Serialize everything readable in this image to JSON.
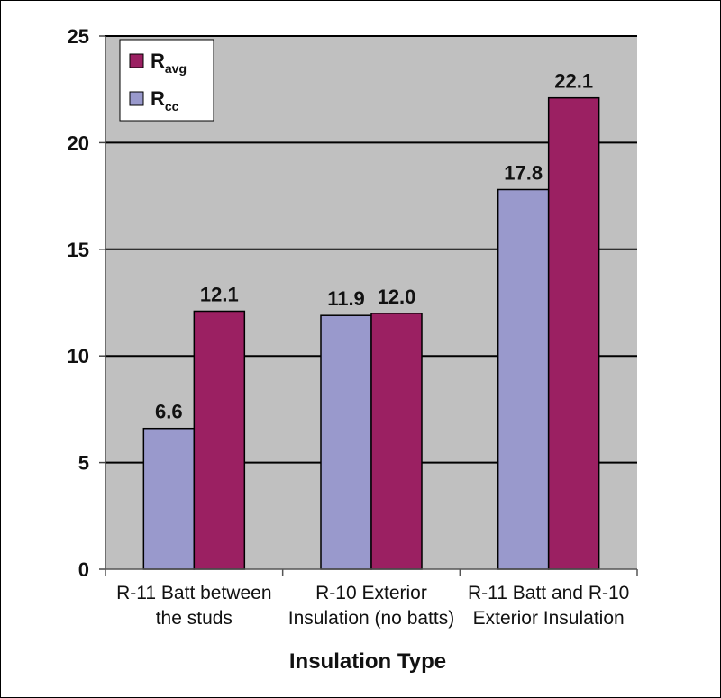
{
  "chart_data": {
    "type": "bar",
    "title": "",
    "xlabel": "Insulation Type",
    "ylabel": "",
    "ylim": [
      0,
      25
    ],
    "yticks": [
      0,
      5,
      10,
      15,
      20,
      25
    ],
    "grid": true,
    "legend_position": "top-left",
    "categories": [
      [
        "R-11 Batt between",
        "the studs"
      ],
      [
        "R-10 Exterior",
        "Insulation (no batts)"
      ],
      [
        "R-11 Batt and R-10",
        "Exterior Insulation"
      ]
    ],
    "series": [
      {
        "name": "R",
        "sub": "cc",
        "color": "#9999cc",
        "values": [
          6.6,
          11.9,
          17.8
        ],
        "labels": [
          "6.6",
          "11.9",
          "17.8"
        ]
      },
      {
        "name": "R",
        "sub": "avg",
        "color": "#9b2062",
        "values": [
          12.1,
          12.0,
          22.1
        ],
        "labels": [
          "12.1",
          "12.0",
          "22.1"
        ]
      }
    ],
    "legend_order": [
      1,
      0
    ],
    "plot_background": "#c0c0c0"
  }
}
